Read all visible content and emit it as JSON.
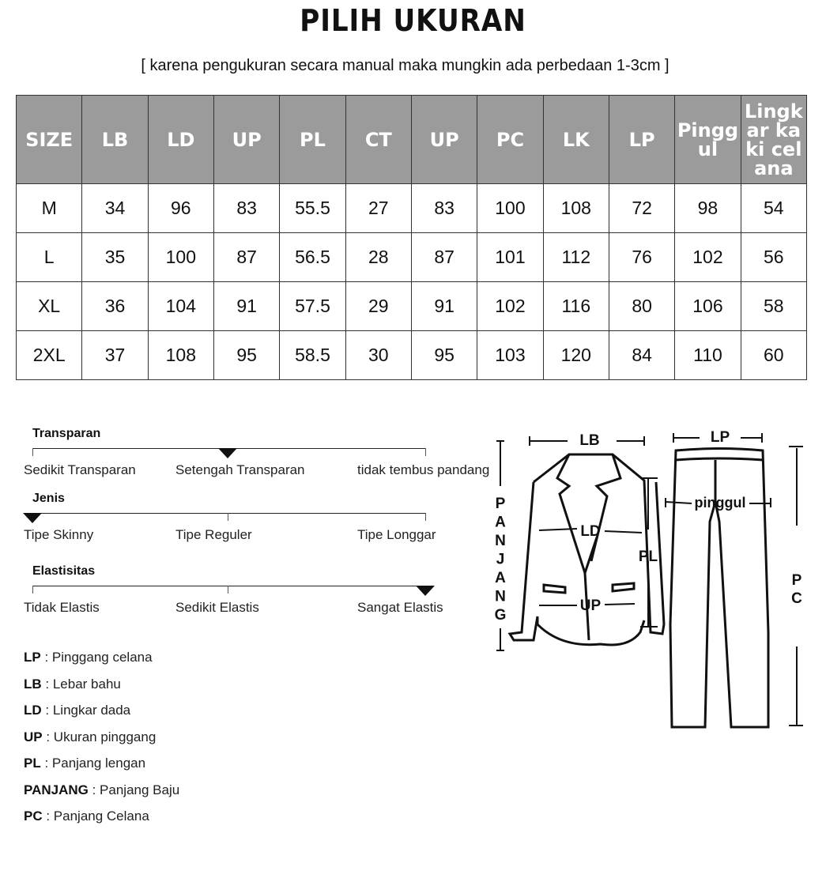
{
  "title": "PILIH UKURAN",
  "subtitle": "[ karena pengukuran secara manual maka mungkin ada perbedaan 1-3cm ]",
  "table": {
    "headers": [
      "SIZE",
      "LB",
      "LD",
      "UP",
      "PL",
      "CT",
      "UP",
      "PC",
      "LK",
      "LP",
      "Pinggul",
      "Lingkar kaki celana"
    ],
    "rows": [
      [
        "M",
        "34",
        "96",
        "83",
        "55.5",
        "27",
        "83",
        "100",
        "108",
        "72",
        "98",
        "54"
      ],
      [
        "L",
        "35",
        "100",
        "87",
        "56.5",
        "28",
        "87",
        "101",
        "112",
        "76",
        "102",
        "56"
      ],
      [
        "XL",
        "36",
        "104",
        "91",
        "57.5",
        "29",
        "91",
        "102",
        "116",
        "80",
        "106",
        "58"
      ],
      [
        "2XL",
        "37",
        "108",
        "95",
        "58.5",
        "30",
        "95",
        "103",
        "120",
        "84",
        "110",
        "60"
      ]
    ],
    "header_color": "#9b9b9b"
  },
  "scales": [
    {
      "label": "Transparan",
      "options": [
        "Sedikit Transparan",
        "Setengah Transparan",
        "tidak tembus pandang"
      ],
      "selected_index": 1
    },
    {
      "label": "Jenis",
      "options": [
        "Tipe Skinny",
        "Tipe  Reguler",
        "Tipe Longgar"
      ],
      "selected_index": 0
    },
    {
      "label": "Elastisitas",
      "options": [
        "Tidak Elastis",
        "Sedikit Elastis",
        "Sangat  Elastis"
      ],
      "selected_index": 2
    }
  ],
  "legend": [
    {
      "key": "LP",
      "desc": "Pinggang celana"
    },
    {
      "key": "LB",
      "desc": "Lebar bahu"
    },
    {
      "key": "LD",
      "desc": "Lingkar dada"
    },
    {
      "key": "UP",
      "desc": "Ukuran pinggang"
    },
    {
      "key": "PL",
      "desc": "Panjang lengan"
    },
    {
      "key": "PANJANG",
      "desc": "Panjang Baju"
    },
    {
      "key": "PC",
      "desc": "Panjang Celana"
    }
  ],
  "diagram": {
    "lb": "LB",
    "lp": "LP",
    "ld": "LD",
    "up": "UP",
    "pl": "PL",
    "pinggul": "pinggul",
    "panjang": [
      "P",
      "A",
      "N",
      "J",
      "A",
      "N",
      "G"
    ],
    "pc": [
      "P",
      "C"
    ]
  }
}
